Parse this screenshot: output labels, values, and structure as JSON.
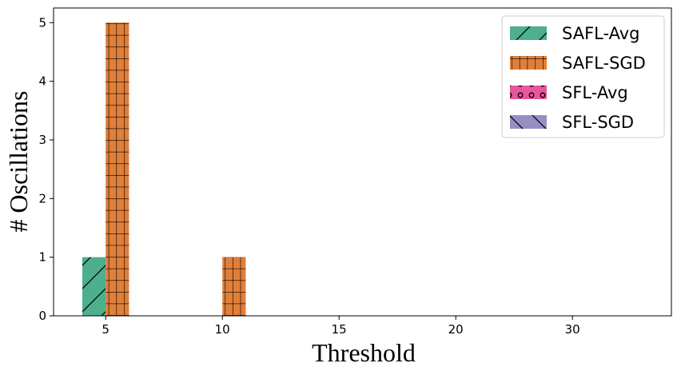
{
  "chart_data": {
    "type": "bar",
    "title": "",
    "xlabel": "Threshold",
    "ylabel": "# Oscillations",
    "categories": [
      "5",
      "10",
      "15",
      "20",
      "30"
    ],
    "yticks": [
      "0",
      "1",
      "2",
      "3",
      "4",
      "5"
    ],
    "ylim": [
      0,
      5.25
    ],
    "grid": false,
    "legend_position": "top-right",
    "series": [
      {
        "name": "SAFL-Avg",
        "color": "#4daf8c",
        "hatch": "diagonal-forward",
        "values": [
          1,
          0,
          0,
          0,
          0
        ]
      },
      {
        "name": "SAFL-SGD",
        "color": "#e07f3a",
        "hatch": "grid",
        "values": [
          5,
          1,
          0,
          0,
          0
        ]
      },
      {
        "name": "SFL-Avg",
        "color": "#e8579b",
        "hatch": "circles",
        "values": [
          0,
          0,
          0,
          0,
          0
        ]
      },
      {
        "name": "SFL-SGD",
        "color": "#958fc4",
        "hatch": "diagonal-back",
        "values": [
          0,
          0,
          0,
          0,
          0
        ]
      }
    ]
  }
}
